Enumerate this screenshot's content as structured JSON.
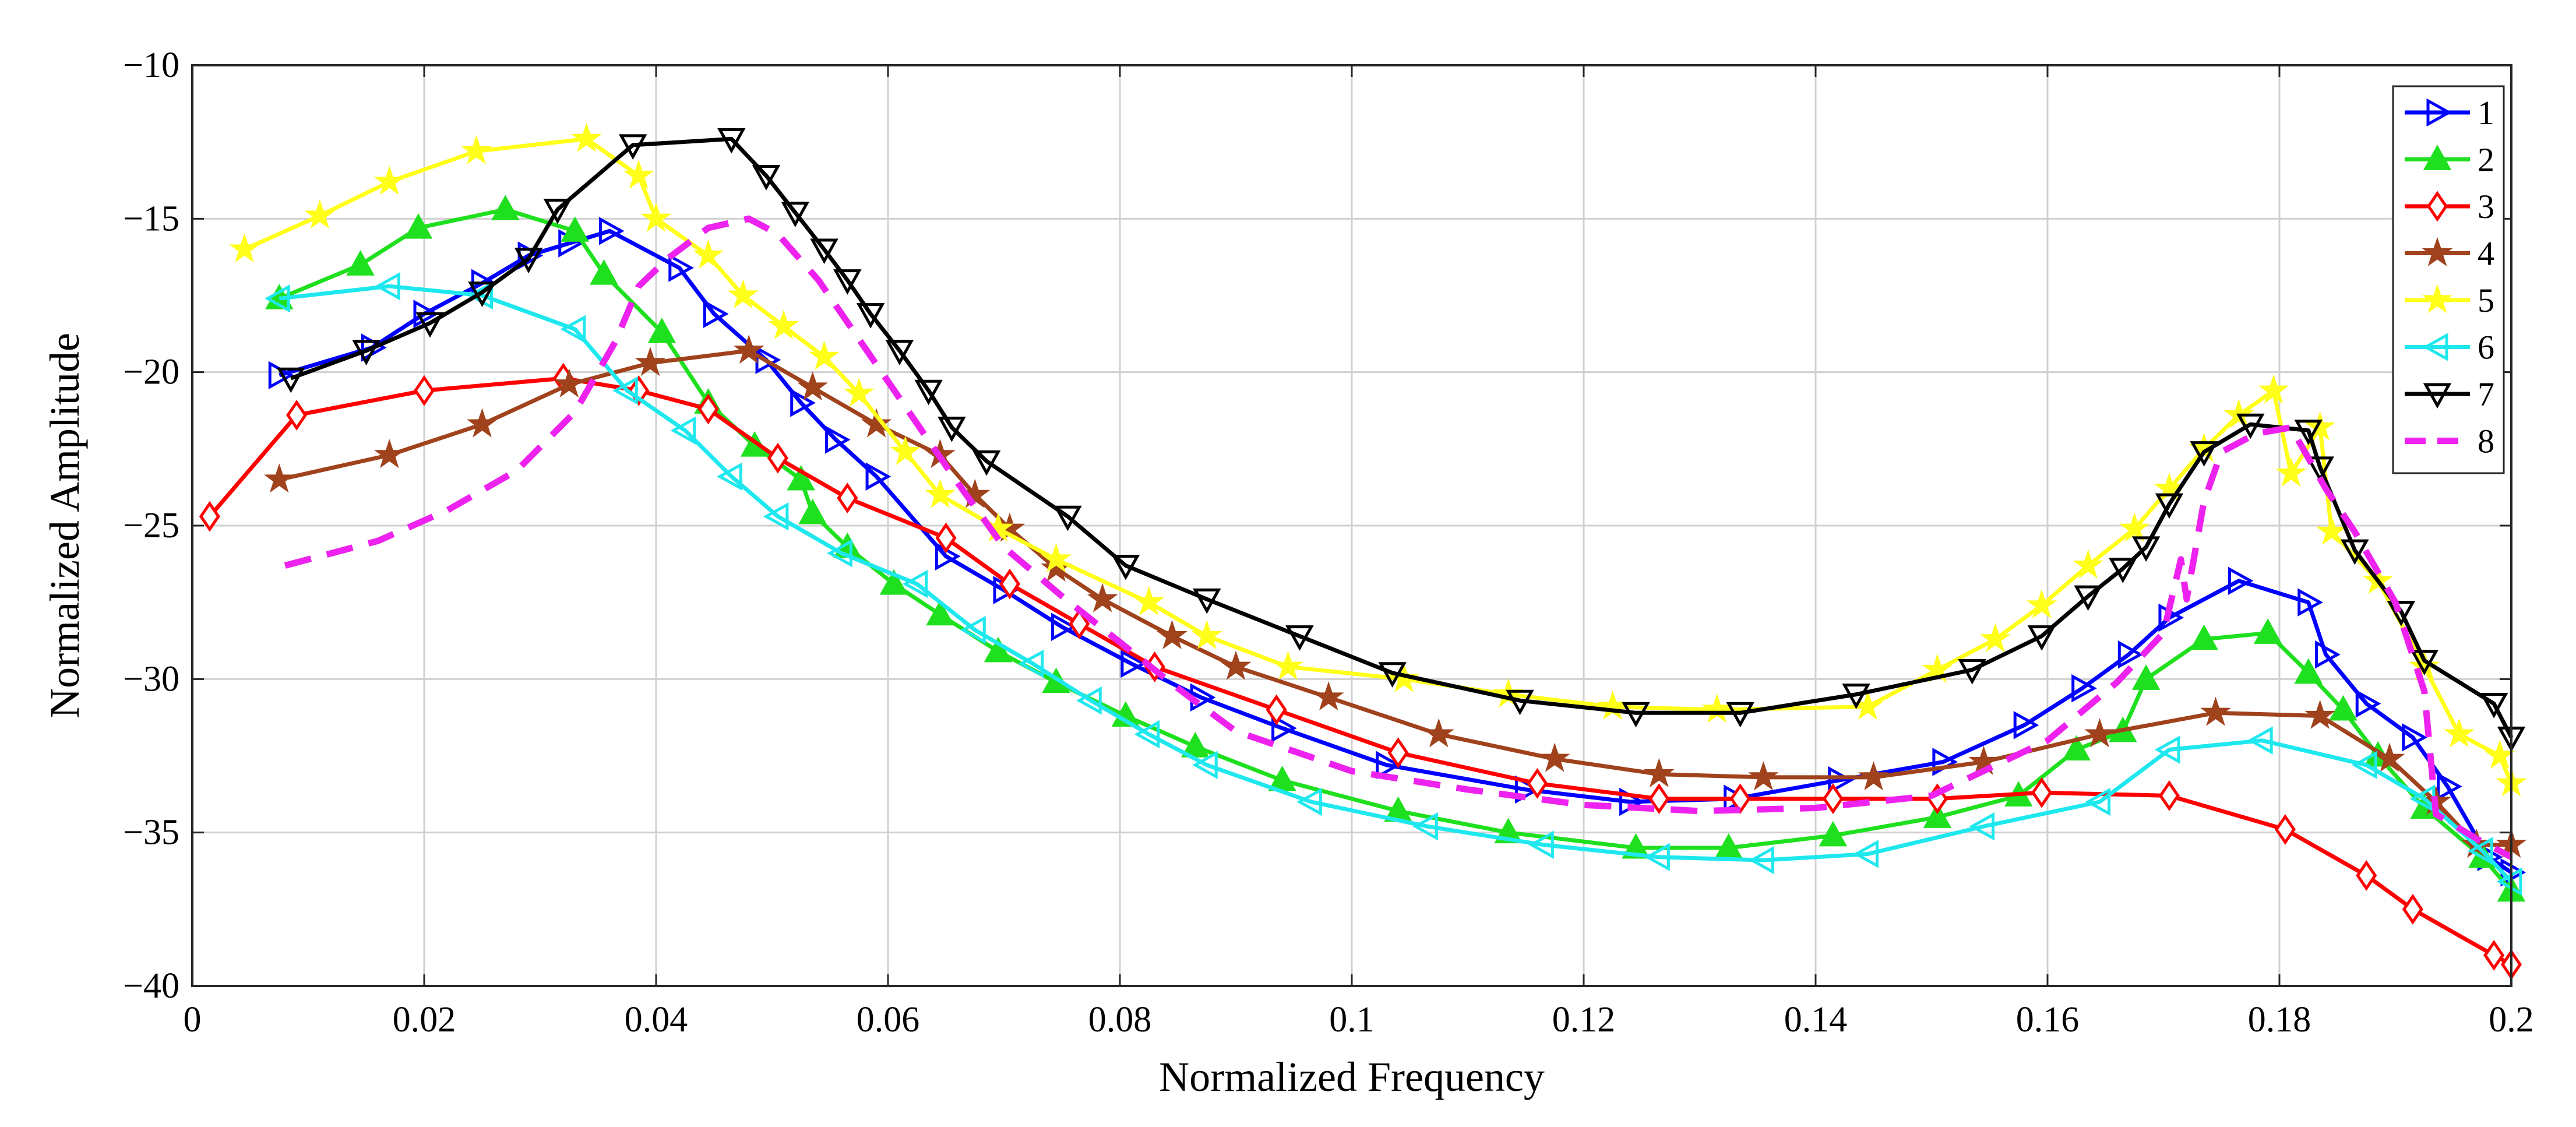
{
  "chart_data": {
    "type": "line",
    "title": "",
    "xlabel": "Normalized Frequency",
    "ylabel": "Normalized Amplitude",
    "xlim": [
      0,
      0.2
    ],
    "ylim": [
      -40,
      -10
    ],
    "x_ticks": [
      0,
      0.02,
      0.04,
      0.06,
      0.08,
      0.1,
      0.12,
      0.14,
      0.16,
      0.18,
      0.2
    ],
    "x_tick_labels": [
      "0",
      "0.02",
      "0.04",
      "0.06",
      "0.08",
      "0.1",
      "0.12",
      "0.14",
      "0.16",
      "0.18",
      "0.2"
    ],
    "y_ticks": [
      -40,
      -35,
      -30,
      -25,
      -20,
      -15,
      -10
    ],
    "y_tick_labels": [
      "−40",
      "−35",
      "−30",
      "−25",
      "−20",
      "−15",
      "−10"
    ],
    "grid": true,
    "legend_position": "top-right",
    "series": [
      {
        "name": "1",
        "color": "#0000ff",
        "marker": "triangle-right",
        "dash": false,
        "x": [
          0.0075,
          0.0155,
          0.02,
          0.025,
          0.029,
          0.0325,
          0.036,
          0.042,
          0.045,
          0.0495,
          0.0525,
          0.0555,
          0.059,
          0.065,
          0.07,
          0.075,
          0.081,
          0.087,
          0.094,
          0.103,
          0.115,
          0.124,
          0.133,
          0.142,
          0.151,
          0.158,
          0.163,
          0.167,
          0.1705,
          0.1765,
          0.1825,
          0.184,
          0.1875,
          0.1915,
          0.1945,
          0.198,
          0.2
        ],
        "y": [
          -20.1,
          -19.2,
          -18.1,
          -17.1,
          -16.2,
          -15.8,
          -15.4,
          -16.6,
          -18.1,
          -19.6,
          -21.0,
          -22.2,
          -23.4,
          -26.0,
          -27.1,
          -28.3,
          -29.5,
          -30.6,
          -31.6,
          -32.8,
          -33.6,
          -34.0,
          -33.9,
          -33.3,
          -32.7,
          -31.5,
          -30.3,
          -29.2,
          -28.0,
          -26.8,
          -27.5,
          -29.2,
          -30.8,
          -31.9,
          -33.5,
          -35.8,
          -36.3
        ]
      },
      {
        "name": "2",
        "color": "#1fe01f",
        "marker": "triangle-up",
        "dash": false,
        "x": [
          0.0075,
          0.0145,
          0.0195,
          0.027,
          0.033,
          0.0355,
          0.0405,
          0.0445,
          0.0485,
          0.0525,
          0.0535,
          0.0565,
          0.0605,
          0.0645,
          0.0695,
          0.0745,
          0.0805,
          0.0865,
          0.094,
          0.104,
          0.1135,
          0.1245,
          0.1325,
          0.1415,
          0.1505,
          0.1575,
          0.1625,
          0.1665,
          0.1685,
          0.1735,
          0.179,
          0.1825,
          0.1855,
          0.1885,
          0.1925,
          0.1975,
          0.2
        ],
        "y": [
          -17.6,
          -16.5,
          -15.3,
          -14.7,
          -15.4,
          -16.8,
          -18.7,
          -21.0,
          -22.4,
          -23.5,
          -24.6,
          -25.7,
          -26.9,
          -27.9,
          -29.1,
          -30.1,
          -31.2,
          -32.2,
          -33.3,
          -34.3,
          -35.0,
          -35.5,
          -35.5,
          -35.1,
          -34.5,
          -33.8,
          -32.3,
          -31.7,
          -30.0,
          -28.7,
          -28.5,
          -29.8,
          -31.0,
          -32.5,
          -34.2,
          -35.8,
          -36.9
        ]
      },
      {
        "name": "3",
        "color": "#ff0000",
        "marker": "diamond",
        "dash": false,
        "x": [
          0.0015,
          0.009,
          0.02,
          0.032,
          0.0385,
          0.0445,
          0.0505,
          0.0565,
          0.065,
          0.0705,
          0.0765,
          0.083,
          0.0935,
          0.104,
          0.116,
          0.1265,
          0.1335,
          0.1415,
          0.1505,
          0.1595,
          0.1705,
          0.1805,
          0.1875,
          0.1915,
          0.1985,
          0.2
        ],
        "y": [
          -24.7,
          -21.4,
          -20.6,
          -20.2,
          -20.6,
          -21.2,
          -22.8,
          -24.1,
          -25.4,
          -26.9,
          -28.2,
          -29.6,
          -31.0,
          -32.4,
          -33.4,
          -33.9,
          -33.9,
          -33.9,
          -33.9,
          -33.7,
          -33.8,
          -34.9,
          -36.4,
          -37.5,
          -39.0,
          -39.3
        ]
      },
      {
        "name": "4",
        "color": "#a0421c",
        "marker": "star",
        "dash": false,
        "x": [
          0.0075,
          0.017,
          0.025,
          0.0325,
          0.0395,
          0.048,
          0.0535,
          0.059,
          0.0645,
          0.0675,
          0.0705,
          0.0745,
          0.0785,
          0.0845,
          0.09,
          0.098,
          0.1075,
          0.1175,
          0.1265,
          0.1355,
          0.145,
          0.1545,
          0.1645,
          0.1745,
          0.1835,
          0.1895,
          0.1935,
          0.197,
          0.2
        ],
        "y": [
          -23.5,
          -22.7,
          -21.7,
          -20.4,
          -19.7,
          -19.3,
          -20.5,
          -21.7,
          -22.7,
          -24.0,
          -25.1,
          -26.4,
          -27.4,
          -28.6,
          -29.6,
          -30.6,
          -31.8,
          -32.6,
          -33.1,
          -33.2,
          -33.2,
          -32.7,
          -31.8,
          -31.1,
          -31.2,
          -32.6,
          -34.0,
          -35.4,
          -35.4
        ]
      },
      {
        "name": "5",
        "color": "#ffff1a",
        "marker": "star",
        "dash": false,
        "x": [
          0.0045,
          0.011,
          0.017,
          0.0245,
          0.034,
          0.0385,
          0.04,
          0.0445,
          0.0475,
          0.051,
          0.0545,
          0.0575,
          0.0615,
          0.0645,
          0.0695,
          0.0745,
          0.0825,
          0.0875,
          0.0945,
          0.1045,
          0.1135,
          0.1225,
          0.1315,
          0.1445,
          0.1505,
          0.1555,
          0.1595,
          0.1635,
          0.1675,
          0.1705,
          0.1735,
          0.1765,
          0.1795,
          0.181,
          0.1835,
          0.1845,
          0.1885,
          0.1925,
          0.1955,
          0.199,
          0.2
        ],
        "y": [
          -16.0,
          -14.9,
          -13.8,
          -12.8,
          -12.4,
          -13.6,
          -15.0,
          -16.2,
          -17.5,
          -18.5,
          -19.5,
          -20.7,
          -22.6,
          -24.0,
          -25.1,
          -26.1,
          -27.5,
          -28.6,
          -29.6,
          -30.0,
          -30.5,
          -30.9,
          -31.0,
          -30.9,
          -29.7,
          -28.7,
          -27.6,
          -26.3,
          -25.1,
          -23.8,
          -22.5,
          -21.4,
          -20.6,
          -23.3,
          -21.8,
          -25.2,
          -26.8,
          -29.6,
          -31.8,
          -32.5,
          -33.4
        ]
      },
      {
        "name": "6",
        "color": "#1ee8ee",
        "marker": "triangle-left",
        "dash": false,
        "x": [
          0.0075,
          0.017,
          0.025,
          0.033,
          0.0375,
          0.0425,
          0.0465,
          0.0505,
          0.056,
          0.0625,
          0.0675,
          0.0725,
          0.0775,
          0.0825,
          0.0875,
          0.0965,
          0.1065,
          0.1165,
          0.1265,
          0.1355,
          0.1445,
          0.1545,
          0.1645,
          0.1705,
          0.1785,
          0.1875,
          0.1925,
          0.1975,
          0.2
        ],
        "y": [
          -17.6,
          -17.2,
          -17.5,
          -18.6,
          -20.6,
          -21.9,
          -23.4,
          -24.7,
          -25.9,
          -26.9,
          -28.4,
          -29.5,
          -30.7,
          -31.8,
          -32.8,
          -34.0,
          -34.8,
          -35.4,
          -35.8,
          -35.9,
          -35.7,
          -34.8,
          -34.0,
          -32.3,
          -32.0,
          -32.8,
          -33.9,
          -35.6,
          -36.6
        ]
      },
      {
        "name": "7",
        "color": "#000000",
        "marker": "triangle-down",
        "dash": false,
        "x": [
          0.0085,
          0.015,
          0.0205,
          0.025,
          0.029,
          0.0315,
          0.038,
          0.0465,
          0.0495,
          0.052,
          0.0545,
          0.0565,
          0.0585,
          0.061,
          0.0635,
          0.0655,
          0.0685,
          0.0755,
          0.0805,
          0.0875,
          0.0955,
          0.1035,
          0.1145,
          0.1245,
          0.1335,
          0.1435,
          0.1535,
          0.1595,
          0.1635,
          0.1665,
          0.1685,
          0.1705,
          0.1735,
          0.1775,
          0.1825,
          0.1835,
          0.1865,
          0.1905,
          0.1925,
          0.1985,
          0.2
        ],
        "y": [
          -20.2,
          -19.3,
          -18.4,
          -17.4,
          -16.3,
          -14.7,
          -12.6,
          -12.4,
          -13.6,
          -14.8,
          -16.0,
          -17.0,
          -18.1,
          -19.3,
          -20.6,
          -21.8,
          -22.9,
          -24.7,
          -26.3,
          -27.4,
          -28.6,
          -29.8,
          -30.7,
          -31.1,
          -31.1,
          -30.5,
          -29.7,
          -28.6,
          -27.3,
          -26.4,
          -25.7,
          -24.3,
          -22.6,
          -21.7,
          -21.9,
          -23.1,
          -25.8,
          -27.8,
          -29.4,
          -30.8,
          -31.9
        ]
      },
      {
        "name": "8",
        "color": "#ee22ee",
        "marker": "none",
        "dash": true,
        "x": [
          0.008,
          0.016,
          0.022,
          0.028,
          0.033,
          0.0365,
          0.0385,
          0.041,
          0.0445,
          0.048,
          0.0505,
          0.054,
          0.058,
          0.062,
          0.066,
          0.07,
          0.075,
          0.08,
          0.085,
          0.09,
          0.1,
          0.11,
          0.12,
          0.13,
          0.14,
          0.15,
          0.16,
          0.166,
          0.17,
          0.1715,
          0.172,
          0.1735,
          0.175,
          0.178,
          0.181,
          0.184,
          0.1865,
          0.19,
          0.1925,
          0.1935,
          0.197,
          0.2
        ],
        "y": [
          -26.3,
          -25.5,
          -24.5,
          -23.2,
          -21.3,
          -19.0,
          -17.2,
          -16.3,
          -15.3,
          -15.0,
          -15.5,
          -17.0,
          -19.2,
          -21.4,
          -23.6,
          -25.7,
          -27.3,
          -28.8,
          -30.3,
          -31.7,
          -33.0,
          -33.6,
          -34.1,
          -34.3,
          -34.2,
          -33.8,
          -32.0,
          -30.1,
          -28.5,
          -26.1,
          -27.4,
          -24.2,
          -22.6,
          -22.0,
          -21.8,
          -23.8,
          -25.2,
          -27.5,
          -30.4,
          -34.4,
          -35.2,
          -35.8
        ]
      }
    ]
  }
}
